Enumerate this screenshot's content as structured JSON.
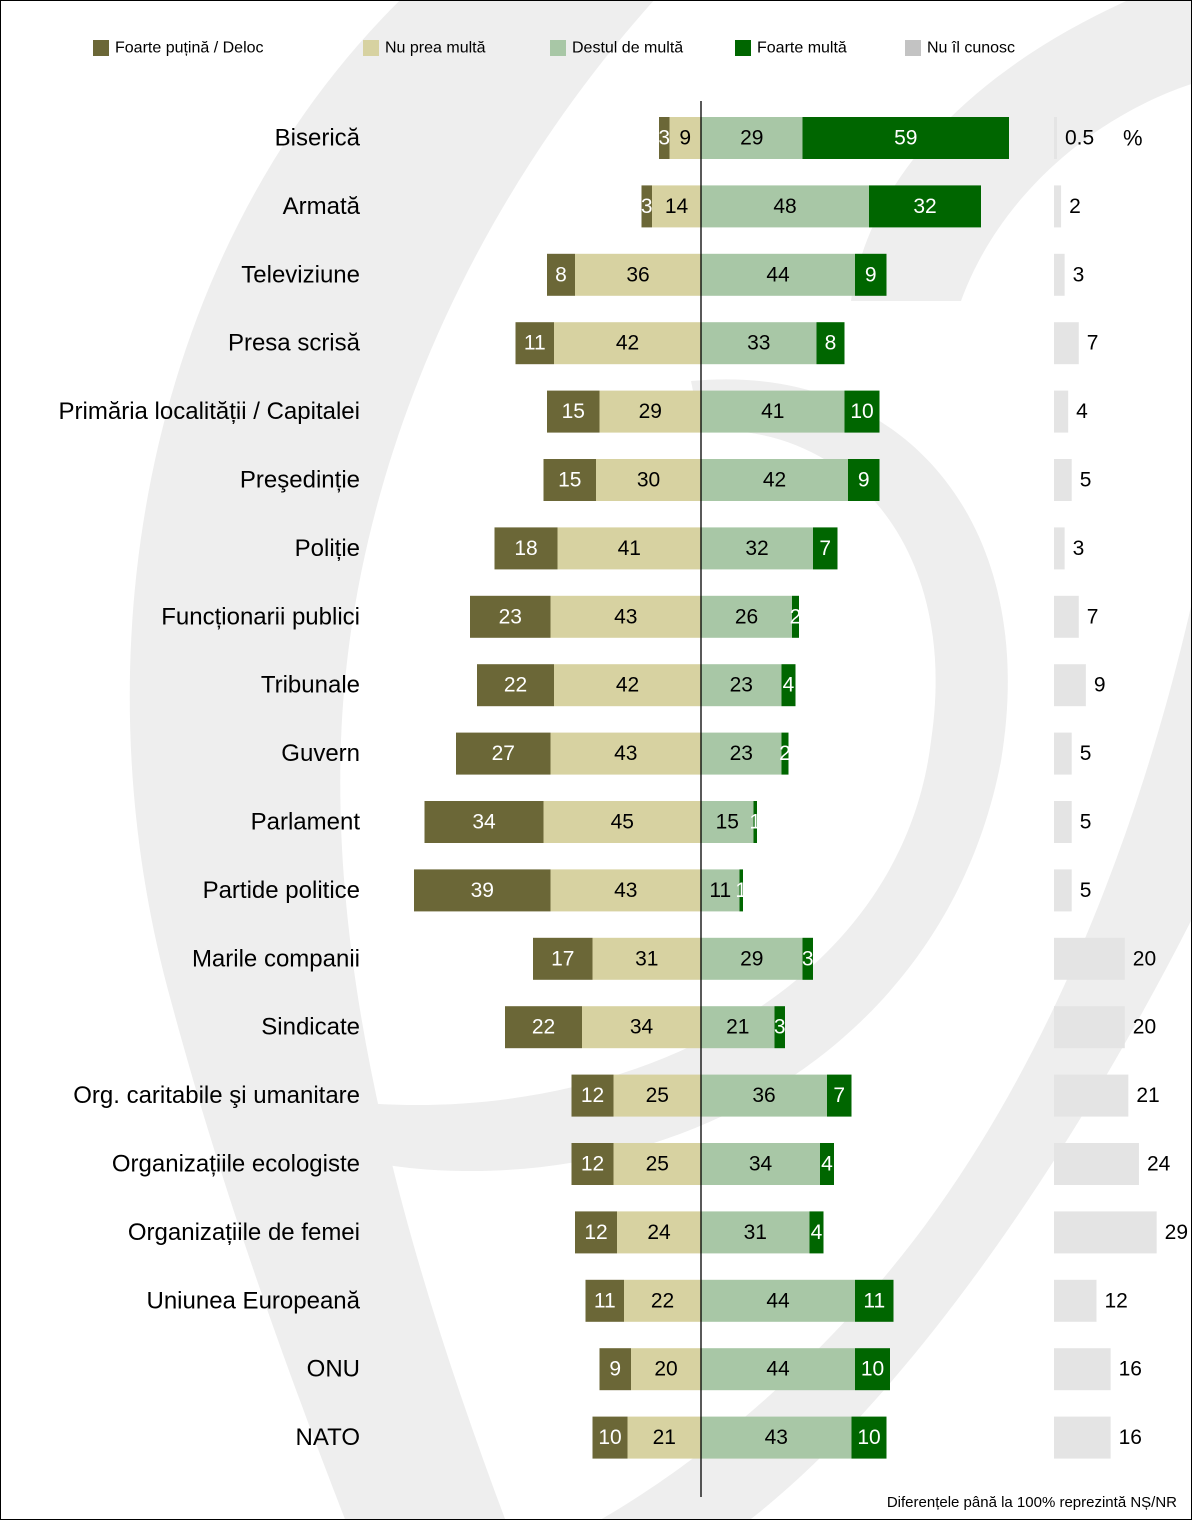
{
  "chart_data": {
    "type": "bar",
    "stacked": "diverging",
    "unit": "%",
    "legend": [
      "Foarte puțină / Deloc",
      "Nu prea multă",
      "Destul de multă",
      "Foarte multă",
      "Nu îl cunosc"
    ],
    "colors": {
      "Foarte puțină / Deloc": "#6b6737",
      "Nu prea multă": "#d7d2a1",
      "Destul de multă": "#a8c7a6",
      "Foarte multă": "#006600",
      "Nu îl cunosc": "#e4e4e4",
      "legend_nu_il_cunosc": "#c3c3c3",
      "background_swirl": "#eeeeee"
    },
    "categories": [
      "Biserică",
      "Armată",
      "Televiziune",
      "Presa scrisă",
      "Primăria localității / Capitalei",
      "Preşedinție",
      "Poliție",
      "Funcționarii publici",
      "Tribunale",
      "Guvern",
      "Parlament",
      "Partide politice",
      "Marile companii",
      "Sindicate",
      "Org. caritabile şi umanitare",
      "Organizațiile ecologiste",
      "Organizațiile de femei",
      "Uniunea Europeană",
      "ONU",
      "NATO"
    ],
    "series": [
      {
        "name": "Foarte puțină / Deloc",
        "side": "left-outer",
        "values": [
          3,
          3,
          8,
          11,
          15,
          15,
          18,
          23,
          22,
          27,
          34,
          39,
          17,
          22,
          12,
          12,
          12,
          11,
          9,
          10
        ]
      },
      {
        "name": "Nu prea multă",
        "side": "left-inner",
        "values": [
          9,
          14,
          36,
          42,
          29,
          30,
          41,
          43,
          42,
          43,
          45,
          43,
          31,
          34,
          25,
          25,
          24,
          22,
          20,
          21
        ]
      },
      {
        "name": "Destul de multă",
        "side": "right-inner",
        "values": [
          29,
          48,
          44,
          33,
          41,
          42,
          32,
          26,
          23,
          23,
          15,
          11,
          29,
          21,
          36,
          34,
          31,
          44,
          44,
          43
        ]
      },
      {
        "name": "Foarte multă",
        "side": "right-outer",
        "values": [
          59,
          32,
          9,
          8,
          10,
          9,
          7,
          2,
          4,
          2,
          1,
          1,
          3,
          3,
          7,
          4,
          4,
          11,
          10,
          10
        ]
      },
      {
        "name": "Nu îl cunosc",
        "side": "separate",
        "values": [
          0.5,
          2,
          3,
          7,
          4,
          5,
          3,
          7,
          9,
          5,
          5,
          5,
          20,
          20,
          21,
          24,
          29,
          12,
          16,
          16
        ]
      }
    ],
    "unit_label": "%",
    "footnote": "Diferențele până la 100% reprezintă NȘ/NR"
  }
}
